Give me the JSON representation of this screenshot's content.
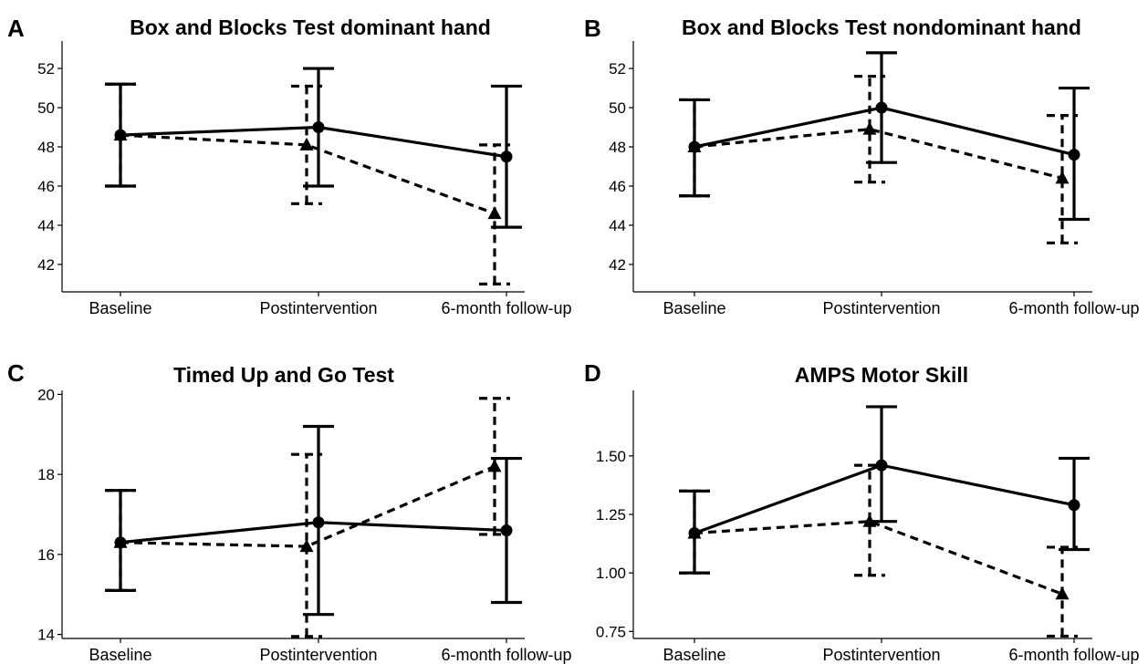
{
  "chart_data": [
    {
      "panel_letter": "A",
      "type": "line",
      "title": "Box and Blocks Test dominant hand",
      "categories": [
        "Baseline",
        "Postintervention",
        "6-month follow-up"
      ],
      "yticks": [
        42,
        44,
        46,
        48,
        50,
        52
      ],
      "ylim": [
        40.6,
        53.4
      ],
      "series": [
        {
          "line_style": "solid",
          "marker": "circle",
          "values": [
            48.6,
            49.0,
            47.5
          ],
          "error_low": [
            46.0,
            46.0,
            43.9
          ],
          "error_high": [
            51.2,
            52.0,
            51.1
          ]
        },
        {
          "line_style": "dashed",
          "marker": "triangle",
          "values": [
            48.6,
            48.1,
            44.6
          ],
          "error_low": [
            46.0,
            45.1,
            41.0
          ],
          "error_high": [
            51.2,
            51.1,
            48.1
          ]
        }
      ]
    },
    {
      "panel_letter": "B",
      "type": "line",
      "title": "Box and Blocks Test nondominant hand",
      "categories": [
        "Baseline",
        "Postintervention",
        "6-month follow-up"
      ],
      "yticks": [
        42,
        44,
        46,
        48,
        50,
        52
      ],
      "ylim": [
        40.6,
        53.4
      ],
      "series": [
        {
          "line_style": "solid",
          "marker": "circle",
          "values": [
            48.0,
            50.0,
            47.6
          ],
          "error_low": [
            45.5,
            47.2,
            44.3
          ],
          "error_high": [
            50.4,
            52.8,
            51.0
          ]
        },
        {
          "line_style": "dashed",
          "marker": "triangle",
          "values": [
            48.0,
            48.9,
            46.4
          ],
          "error_low": [
            45.5,
            46.2,
            43.1
          ],
          "error_high": [
            50.4,
            51.6,
            49.6
          ]
        }
      ]
    },
    {
      "panel_letter": "C",
      "type": "line",
      "title": "Timed Up and Go Test",
      "categories": [
        "Baseline",
        "Postintervention",
        "6-month follow-up"
      ],
      "yticks": [
        14,
        16,
        18,
        20
      ],
      "ylim": [
        13.9,
        20.1
      ],
      "series": [
        {
          "line_style": "solid",
          "marker": "circle",
          "values": [
            16.3,
            16.8,
            16.6
          ],
          "error_low": [
            15.1,
            14.5,
            14.8
          ],
          "error_high": [
            17.6,
            19.2,
            18.4
          ]
        },
        {
          "line_style": "dashed",
          "marker": "triangle",
          "values": [
            16.3,
            16.2,
            18.2
          ],
          "error_low": [
            15.1,
            13.95,
            16.5
          ],
          "error_high": [
            17.6,
            18.5,
            19.9
          ]
        }
      ]
    },
    {
      "panel_letter": "D",
      "type": "line",
      "title": "AMPS Motor Skill",
      "categories": [
        "Baseline",
        "Postintervention",
        "6-month follow-up"
      ],
      "yticks": [
        "0.75",
        "1.00",
        "1.25",
        "1.50"
      ],
      "ylim": [
        0.72,
        1.78
      ],
      "series": [
        {
          "line_style": "solid",
          "marker": "circle",
          "values": [
            1.17,
            1.46,
            1.29
          ],
          "error_low": [
            1.0,
            1.22,
            1.1
          ],
          "error_high": [
            1.35,
            1.71,
            1.49
          ]
        },
        {
          "line_style": "dashed",
          "marker": "triangle",
          "values": [
            1.17,
            1.22,
            0.91
          ],
          "error_low": [
            1.0,
            0.99,
            0.73
          ],
          "error_high": [
            1.35,
            1.46,
            1.11
          ]
        }
      ]
    }
  ]
}
